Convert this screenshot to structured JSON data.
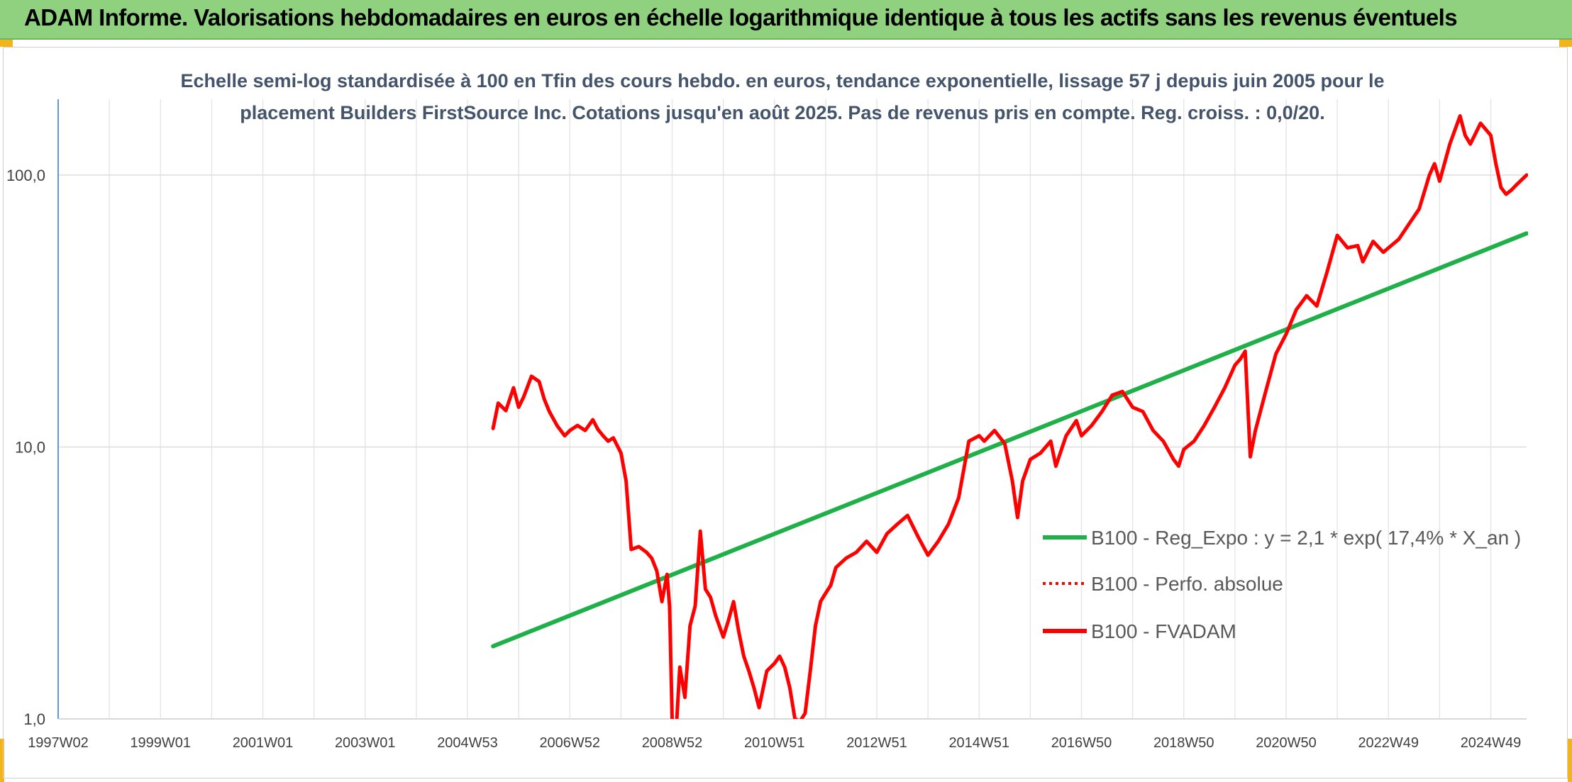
{
  "banner": {
    "title": "ADAM Informe. Valorisations hebdomadaires en euros en échelle logarithmique identique à tous les actifs sans les revenus éventuels",
    "background_color": "#8fd17e",
    "accent_color": "#f2b31b"
  },
  "chart_data": {
    "type": "line",
    "title": "Echelle semi-log standardisée à 100 en Tfin des cours hebdo. en euros, tendance exponentielle, lissage 57 j depuis juin 2005 pour le placement Builders FirstSource Inc. Cotations jusqu'en août 2025. Pas de revenus pris en compte. Reg. croiss. : 0,0/20.",
    "title_lines": [
      "Echelle semi-log standardisée à 100 en Tfin des cours hebdo. en euros, tendance exponentielle, lissage 57 j depuis juin 2005 pour le",
      "placement Builders FirstSource Inc. Cotations jusqu'en août 2025. Pas de revenus pris en compte. Reg. croiss. : 0,0/20."
    ],
    "y_scale": "log",
    "ylim": [
      1,
      190
    ],
    "y_ticks": [
      {
        "value": 1,
        "label": "1,0"
      },
      {
        "value": 10,
        "label": "10,0"
      },
      {
        "value": 100,
        "label": "100,0"
      }
    ],
    "xlim": [
      1997.0,
      2025.7
    ],
    "x_ticks": [
      {
        "value": 1997.0,
        "label": "1997W02"
      },
      {
        "value": 1999.0,
        "label": "1999W01"
      },
      {
        "value": 2001.0,
        "label": "2001W01"
      },
      {
        "value": 2003.0,
        "label": "2003W01"
      },
      {
        "value": 2005.0,
        "label": "2004W53"
      },
      {
        "value": 2007.0,
        "label": "2006W52"
      },
      {
        "value": 2009.0,
        "label": "2008W52"
      },
      {
        "value": 2011.0,
        "label": "2010W51"
      },
      {
        "value": 2013.0,
        "label": "2012W51"
      },
      {
        "value": 2015.0,
        "label": "2014W51"
      },
      {
        "value": 2017.0,
        "label": "2016W50"
      },
      {
        "value": 2019.0,
        "label": "2018W50"
      },
      {
        "value": 2021.0,
        "label": "2020W50"
      },
      {
        "value": 2023.0,
        "label": "2022W49"
      },
      {
        "value": 2025.0,
        "label": "2024W49"
      }
    ],
    "grid": "vertical and horizontal",
    "legend_position": "center-right",
    "series": [
      {
        "name": "B100 - Reg_Expo : y = 2,1 * exp( 17,4% *  X_an )",
        "color": "#1fb04a",
        "style": "solid",
        "x": [
          2005.5,
          2025.7
        ],
        "y": [
          1.85,
          61
        ]
      },
      {
        "name": "B100 - Perfo. absolue",
        "color": "#ff0000",
        "style": "dotted",
        "x": [],
        "y": []
      },
      {
        "name": "B100 - FVADAM",
        "color": "#ff0000",
        "style": "solid",
        "x": [
          2005.5,
          2005.6,
          2005.75,
          2005.9,
          2006.0,
          2006.1,
          2006.25,
          2006.4,
          2006.5,
          2006.6,
          2006.75,
          2006.9,
          2007.0,
          2007.15,
          2007.3,
          2007.45,
          2007.55,
          2007.65,
          2007.75,
          2007.85,
          2008.0,
          2008.1,
          2008.2,
          2008.35,
          2008.5,
          2008.6,
          2008.7,
          2008.8,
          2008.9,
          2008.95,
          2009.0,
          2009.08,
          2009.15,
          2009.25,
          2009.35,
          2009.45,
          2009.55,
          2009.65,
          2009.75,
          2009.85,
          2010.0,
          2010.1,
          2010.2,
          2010.3,
          2010.4,
          2010.5,
          2010.6,
          2010.7,
          2010.85,
          2011.0,
          2011.1,
          2011.2,
          2011.3,
          2011.4,
          2011.5,
          2011.6,
          2011.7,
          2011.8,
          2011.9,
          2012.0,
          2012.1,
          2012.2,
          2012.4,
          2012.6,
          2012.8,
          2013.0,
          2013.2,
          2013.4,
          2013.6,
          2013.8,
          2014.0,
          2014.2,
          2014.4,
          2014.6,
          2014.8,
          2015.0,
          2015.1,
          2015.3,
          2015.5,
          2015.65,
          2015.75,
          2015.85,
          2016.0,
          2016.2,
          2016.4,
          2016.5,
          2016.7,
          2016.9,
          2017.0,
          2017.2,
          2017.4,
          2017.6,
          2017.8,
          2018.0,
          2018.2,
          2018.4,
          2018.6,
          2018.8,
          2018.9,
          2019.0,
          2019.2,
          2019.4,
          2019.6,
          2019.8,
          2020.0,
          2020.1,
          2020.2,
          2020.3,
          2020.4,
          2020.6,
          2020.8,
          2021.0,
          2021.2,
          2021.4,
          2021.6,
          2021.8,
          2022.0,
          2022.2,
          2022.4,
          2022.5,
          2022.7,
          2022.9,
          2023.0,
          2023.2,
          2023.4,
          2023.6,
          2023.8,
          2023.9,
          2024.0,
          2024.2,
          2024.4,
          2024.5,
          2024.6,
          2024.8,
          2025.0,
          2025.1,
          2025.2,
          2025.3,
          2025.4,
          2025.5,
          2025.7
        ],
        "y": [
          11.7,
          14.5,
          13.6,
          16.5,
          14.0,
          15.3,
          18.2,
          17.4,
          15.0,
          13.5,
          12.0,
          11.0,
          11.5,
          12.0,
          11.5,
          12.6,
          11.6,
          11.0,
          10.5,
          10.8,
          9.5,
          7.5,
          4.2,
          4.3,
          4.1,
          3.9,
          3.5,
          2.7,
          3.4,
          2.6,
          1.0,
          0.92,
          1.55,
          1.2,
          2.2,
          2.6,
          4.9,
          3.0,
          2.8,
          2.4,
          2.0,
          2.3,
          2.7,
          2.1,
          1.7,
          1.5,
          1.3,
          1.1,
          1.5,
          1.6,
          1.7,
          1.55,
          1.3,
          1.0,
          0.98,
          1.05,
          1.5,
          2.2,
          2.7,
          2.9,
          3.1,
          3.6,
          3.9,
          4.1,
          4.5,
          4.1,
          4.8,
          5.2,
          5.6,
          4.7,
          4.0,
          4.5,
          5.2,
          6.5,
          10.5,
          11.0,
          10.5,
          11.5,
          10.3,
          7.5,
          5.5,
          7.5,
          9.0,
          9.5,
          10.5,
          8.5,
          11.0,
          12.5,
          11.0,
          12.0,
          13.5,
          15.5,
          16.0,
          14.0,
          13.5,
          11.5,
          10.5,
          9.0,
          8.5,
          9.8,
          10.5,
          12.0,
          14.0,
          16.5,
          20.0,
          21.0,
          22.5,
          9.2,
          11.5,
          16.0,
          22.0,
          26.0,
          32.0,
          36.0,
          33.0,
          44.0,
          60.0,
          54.0,
          55.0,
          48.0,
          57.0,
          52.0,
          54.0,
          58.0,
          66.0,
          75.0,
          100.0,
          110.0,
          95.0,
          130.0,
          165.0,
          140.0,
          130.0,
          155.0,
          140.0,
          110.0,
          90.0,
          85.0,
          88.0,
          92.0,
          100.0
        ]
      }
    ]
  }
}
